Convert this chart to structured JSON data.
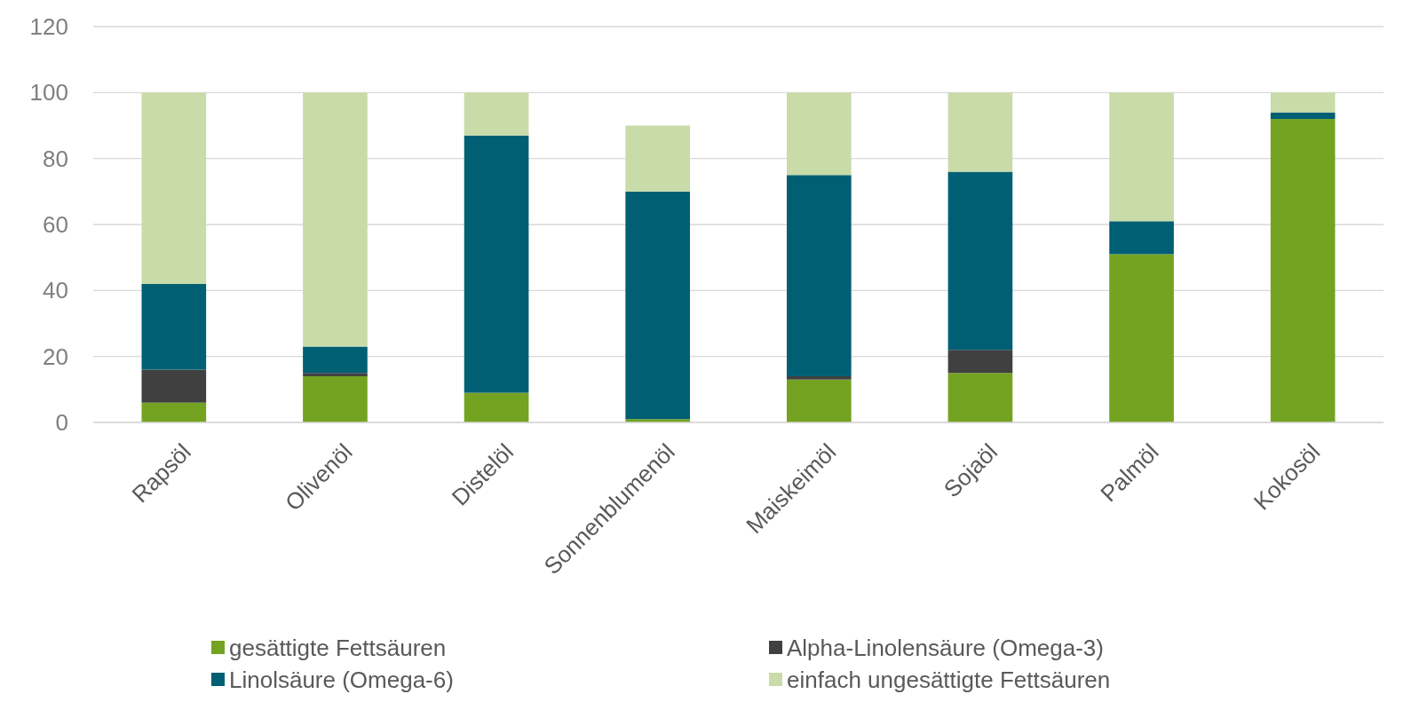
{
  "chart_data": {
    "type": "bar",
    "stacked": true,
    "categories": [
      "Rapsöl",
      "Olivenöl",
      "Distelöl",
      "Sonnenblumenöl",
      "Maiskeimöl",
      "Sojaöl",
      "Palmöl",
      "Kokosöl"
    ],
    "series": [
      {
        "name": "gesättigte Fettsäuren",
        "color": "#74a321",
        "values": [
          6,
          14,
          9,
          1,
          13,
          15,
          51,
          92
        ]
      },
      {
        "name": "Alpha-Linolensäure (Omega-3)",
        "color": "#404040",
        "values": [
          10,
          1,
          0,
          0,
          1,
          7,
          0,
          0
        ]
      },
      {
        "name": "Linolsäure (Omega-6)",
        "color": "#005f73",
        "values": [
          26,
          8,
          78,
          69,
          61,
          54,
          10,
          2
        ]
      },
      {
        "name": "einfach ungesättigte Fettsäuren",
        "color": "#c8dba8",
        "values": [
          58,
          77,
          13,
          20,
          25,
          24,
          39,
          6
        ]
      }
    ],
    "ylim": [
      0,
      120
    ],
    "yticks": [
      0,
      20,
      40,
      60,
      80,
      100,
      120
    ],
    "grid": "y",
    "legend": "bottom"
  }
}
